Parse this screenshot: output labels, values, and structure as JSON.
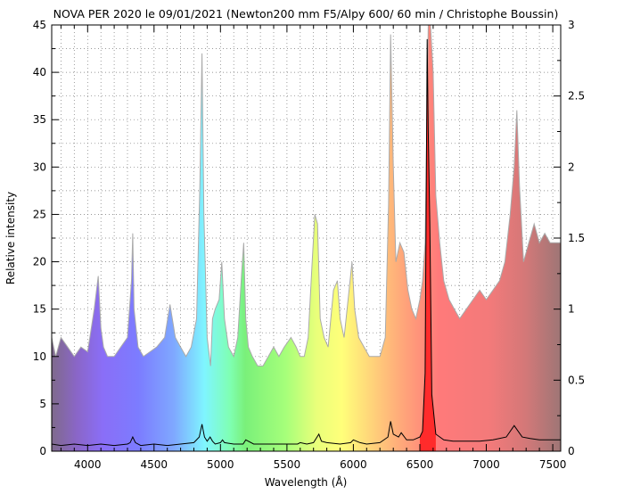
{
  "chart_data": {
    "type": "line",
    "title": "NOVA PER 2020 le 09/01/2021 (Newton200 mm F5/Alpy 600/ 60 min / Christophe Boussin)",
    "xlabel": "Wavelength (Å)",
    "ylabel": "Relative intensity",
    "xlim": [
      3730,
      7560
    ],
    "ylim": [
      0,
      45
    ],
    "y2lim": [
      0,
      3
    ],
    "x_ticks": [
      4000,
      4500,
      5000,
      5500,
      6000,
      6500,
      7000,
      7500
    ],
    "y_ticks": [
      0,
      5,
      10,
      15,
      20,
      25,
      30,
      35,
      40,
      45
    ],
    "y2_ticks": [
      0,
      0.5,
      1,
      1.5,
      2,
      2.5,
      3
    ],
    "x_tick_labels": [
      "4000",
      "4500",
      "5000",
      "5500",
      "6000",
      "6500",
      "7000",
      "7500"
    ],
    "y_tick_labels": [
      "0",
      "5",
      "10",
      "15",
      "20",
      "25",
      "30",
      "35",
      "40",
      "45"
    ],
    "y2_tick_labels": [
      "0",
      "0.5",
      "1",
      "1.5",
      "2",
      "2.5",
      "3"
    ],
    "grid": true,
    "background": "rainbow spectrum fill under scaled curve",
    "series": [
      {
        "axis": "left",
        "color": "#aaaaaa",
        "x": [
          3730,
          3760,
          3800,
          3850,
          3900,
          3950,
          4000,
          4050,
          4080,
          4100,
          4120,
          4150,
          4200,
          4250,
          4300,
          4330,
          4340,
          4350,
          4380,
          4420,
          4470,
          4520,
          4580,
          4620,
          4660,
          4700,
          4740,
          4780,
          4820,
          4845,
          4861,
          4875,
          4900,
          4925,
          4940,
          4960,
          4990,
          5010,
          5030,
          5060,
          5100,
          5130,
          5160,
          5175,
          5190,
          5210,
          5240,
          5280,
          5320,
          5360,
          5400,
          5440,
          5480,
          5530,
          5570,
          5600,
          5630,
          5660,
          5690,
          5710,
          5730,
          5750,
          5780,
          5810,
          5850,
          5880,
          5900,
          5930,
          5960,
          5990,
          6010,
          6040,
          6080,
          6120,
          6160,
          6200,
          6240,
          6265,
          6280,
          6300,
          6320,
          6350,
          6380,
          6410,
          6440,
          6470,
          6500,
          6520,
          6540,
          6563,
          6580,
          6600,
          6620,
          6650,
          6680,
          6720,
          6760,
          6800,
          6850,
          6900,
          6950,
          7000,
          7050,
          7100,
          7140,
          7180,
          7210,
          7230,
          7250,
          7280,
          7320,
          7360,
          7400,
          7440,
          7480,
          7520,
          7560
        ],
        "values": [
          12,
          10,
          12,
          11,
          10,
          11,
          10.5,
          15,
          18.5,
          13,
          11,
          10,
          10,
          11,
          12,
          18,
          23,
          15,
          11,
          10,
          10.5,
          11,
          12,
          15.5,
          12,
          11,
          10,
          11,
          14,
          28,
          42,
          25,
          12,
          9,
          14,
          15,
          16,
          20,
          14,
          11,
          10,
          12,
          19,
          22,
          14,
          11,
          10,
          9,
          9,
          10,
          11,
          10,
          11,
          12,
          11,
          10,
          10,
          12,
          20,
          25,
          24,
          14,
          12,
          11,
          17,
          18,
          14,
          12,
          16,
          20,
          15,
          12,
          11,
          10,
          10,
          10,
          12,
          26,
          44,
          30,
          20,
          22,
          21,
          17,
          15,
          14,
          16,
          18,
          22,
          45,
          45,
          40,
          27,
          22,
          18,
          16,
          15,
          14,
          15,
          16,
          17,
          16,
          17,
          18,
          20,
          25,
          30,
          36,
          28,
          20,
          22,
          24,
          22,
          23,
          22,
          22,
          22
        ]
      },
      {
        "axis": "right",
        "color": "#000000",
        "x": [
          3730,
          3800,
          3900,
          4000,
          4100,
          4200,
          4300,
          4320,
          4340,
          4360,
          4400,
          4500,
          4600,
          4700,
          4800,
          4840,
          4861,
          4880,
          4900,
          4922,
          4940,
          4960,
          5000,
          5015,
          5030,
          5100,
          5170,
          5190,
          5250,
          5300,
          5400,
          5500,
          5580,
          5600,
          5650,
          5700,
          5740,
          5760,
          5800,
          5900,
          5980,
          6000,
          6050,
          6100,
          6200,
          6260,
          6280,
          6300,
          6340,
          6360,
          6400,
          6450,
          6500,
          6520,
          6540,
          6555,
          6563,
          6575,
          6590,
          6620,
          6680,
          6750,
          6850,
          6950,
          7050,
          7150,
          7210,
          7240,
          7270,
          7330,
          7400,
          7500,
          7560
        ],
        "values": [
          0.05,
          0.04,
          0.05,
          0.04,
          0.05,
          0.04,
          0.05,
          0.06,
          0.1,
          0.06,
          0.04,
          0.05,
          0.04,
          0.05,
          0.06,
          0.1,
          0.19,
          0.1,
          0.07,
          0.1,
          0.07,
          0.05,
          0.06,
          0.08,
          0.06,
          0.05,
          0.05,
          0.08,
          0.05,
          0.05,
          0.05,
          0.05,
          0.05,
          0.06,
          0.05,
          0.06,
          0.12,
          0.07,
          0.06,
          0.05,
          0.06,
          0.08,
          0.06,
          0.05,
          0.06,
          0.1,
          0.21,
          0.12,
          0.1,
          0.13,
          0.08,
          0.08,
          0.1,
          0.14,
          0.55,
          2.9,
          2.25,
          1.6,
          0.4,
          0.12,
          0.08,
          0.07,
          0.07,
          0.07,
          0.08,
          0.1,
          0.18,
          0.14,
          0.1,
          0.09,
          0.08,
          0.08,
          0.08
        ]
      }
    ]
  }
}
